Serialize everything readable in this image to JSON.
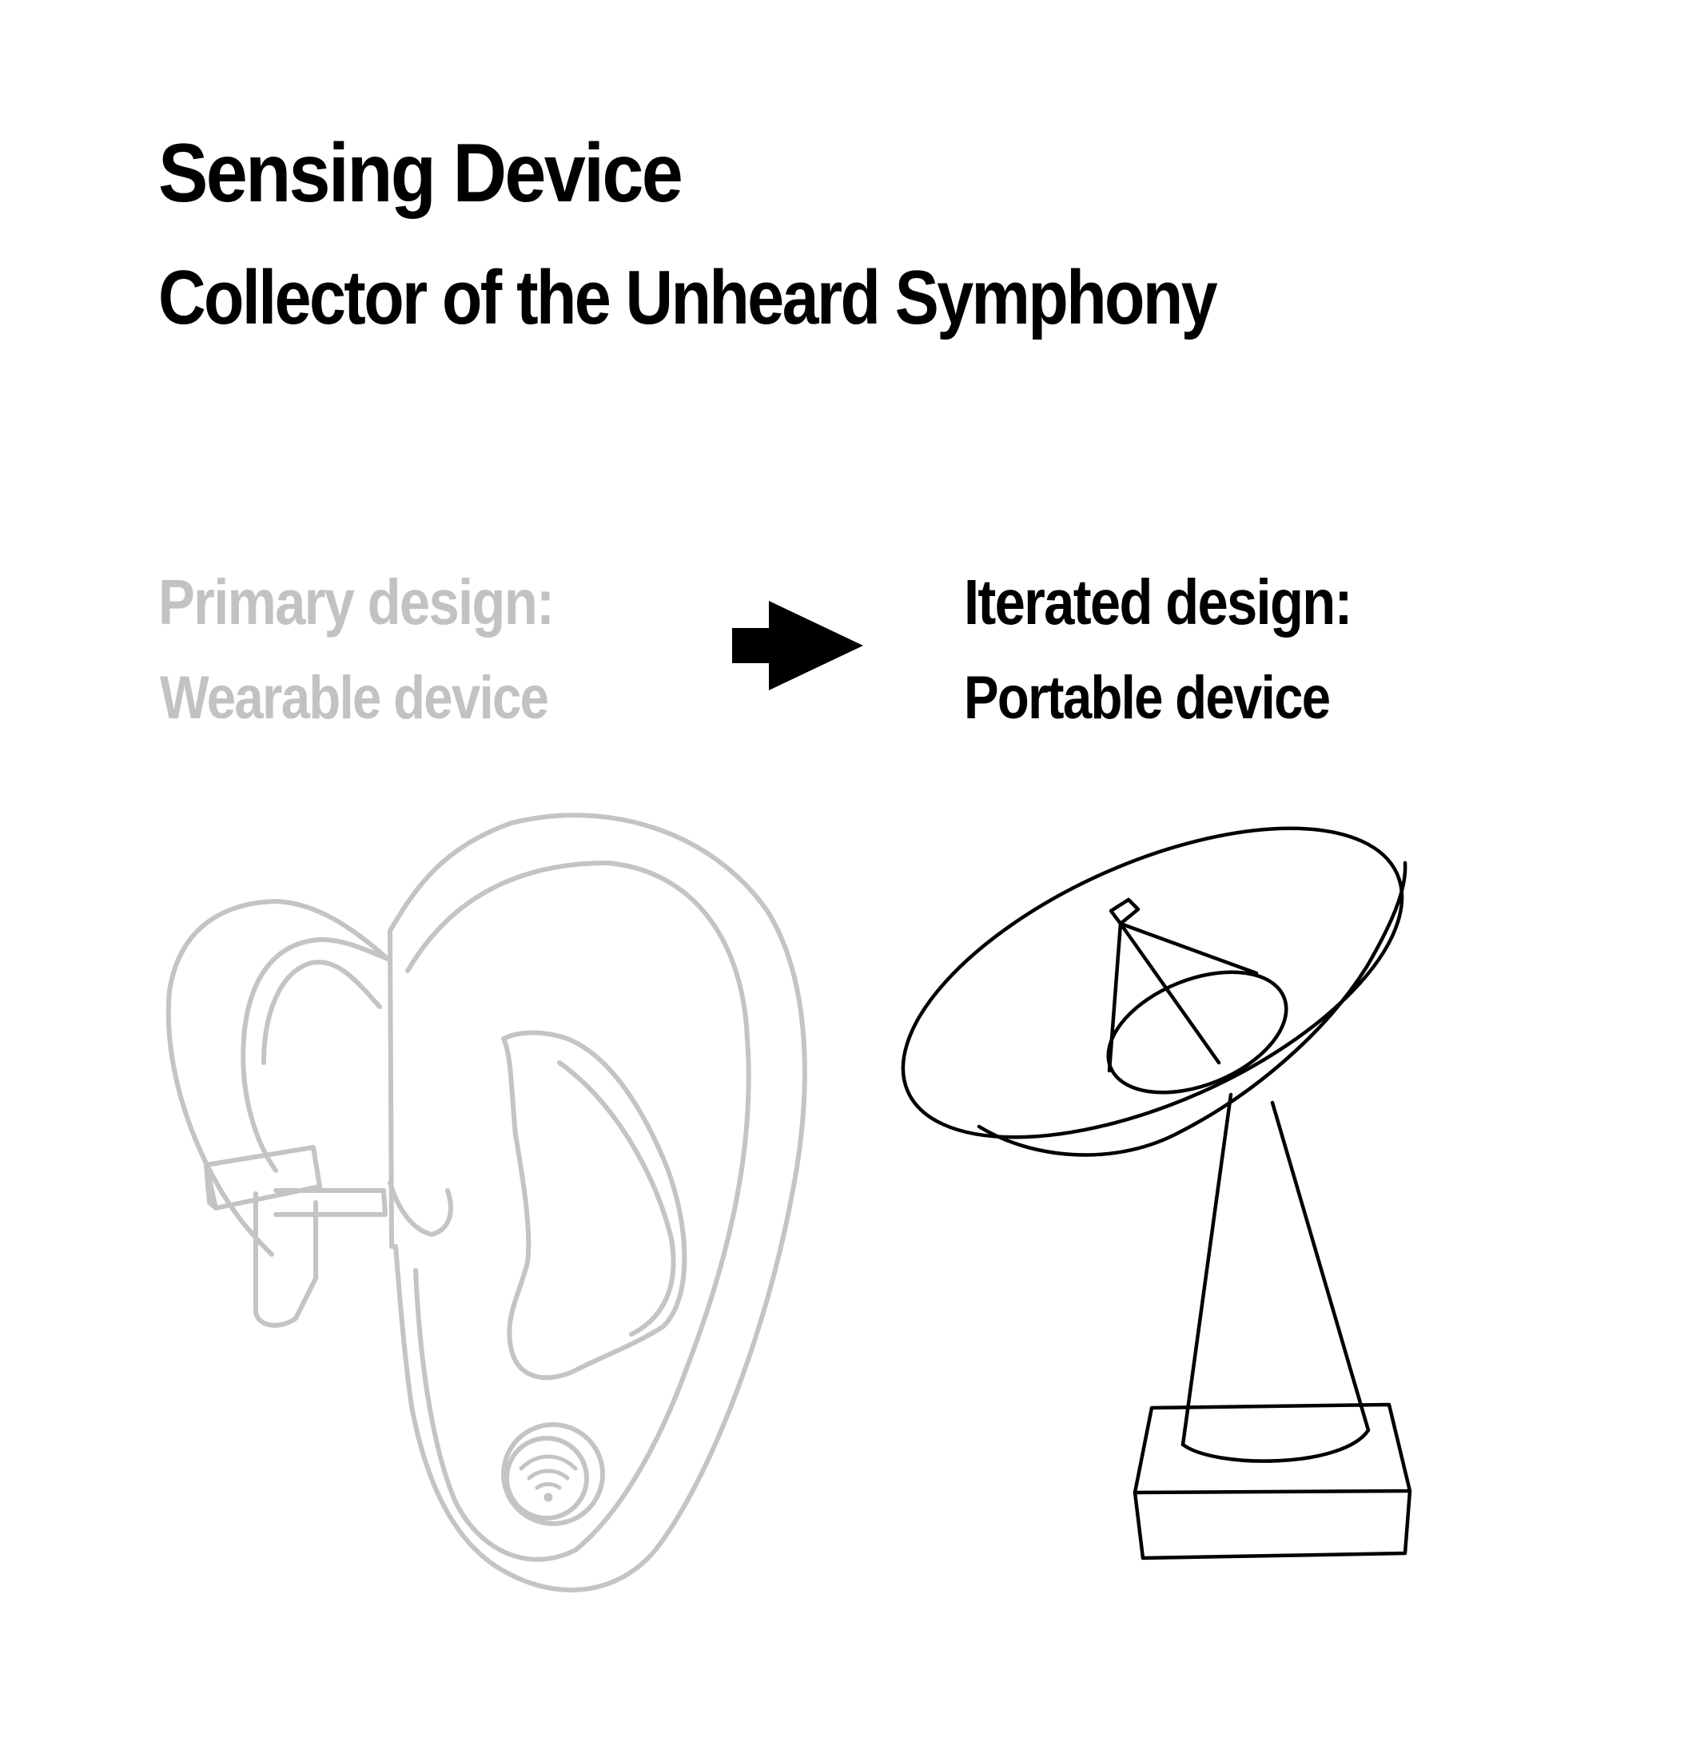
{
  "header": {
    "title": "Sensing Device",
    "subtitle": "Collector of the Unheard Symphony"
  },
  "primary": {
    "heading": "Primary design:",
    "description": "Wearable device",
    "color": "#c2c2c2"
  },
  "iterated": {
    "heading": "Iterated design:",
    "description": "Portable device",
    "color": "#000000"
  },
  "icons": {
    "arrow": "right-arrow-icon",
    "wearable": "ear-hook-device-sketch",
    "portable": "satellite-dish-sketch",
    "wireless": "wifi-icon"
  }
}
